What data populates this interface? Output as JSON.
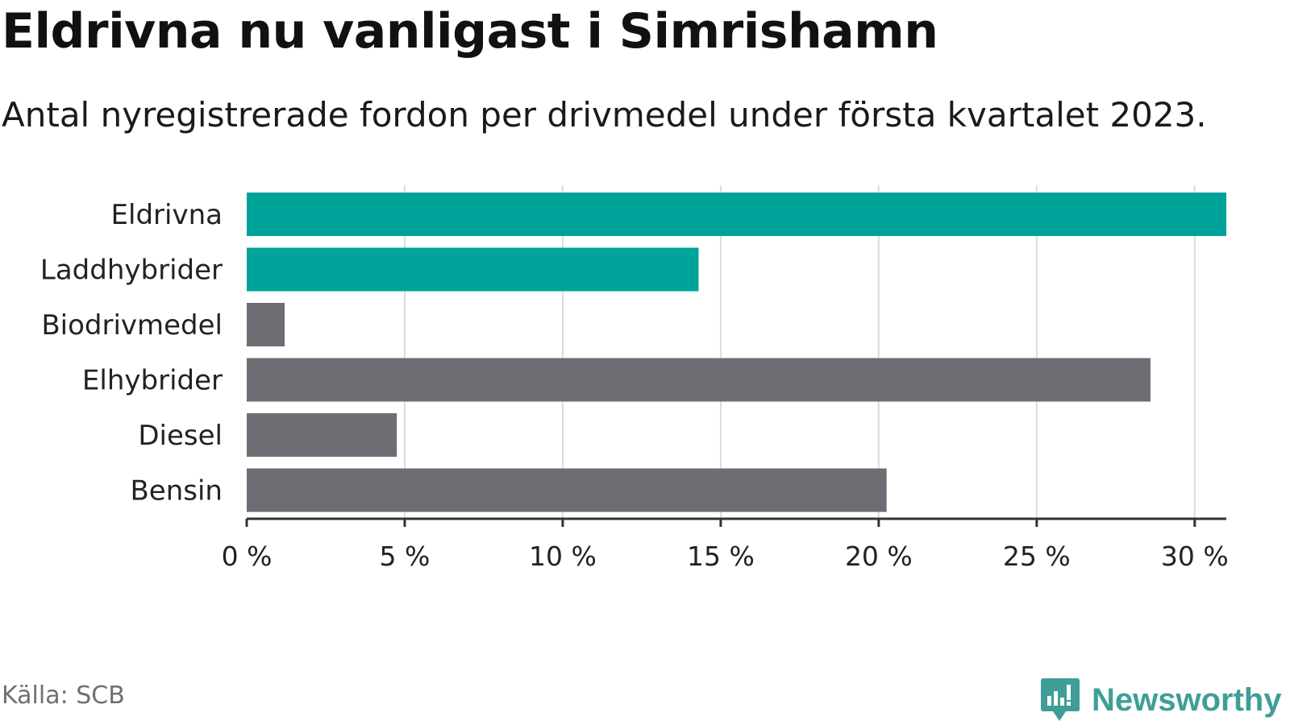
{
  "header": {
    "title": "Eldrivna nu vanligast i Simrishamn",
    "subtitle": "Antal nyregistrerade fordon per drivmedel under första kvartalet 2023."
  },
  "footer": {
    "source": "Källa: SCB",
    "brand": "Newsworthy",
    "brand_icon": "newsworthy-logo-icon"
  },
  "colors": {
    "highlight": "#00a39a",
    "other": "#6e6d73",
    "grid": "#dddddd",
    "axis": "#333333",
    "brand": "#3f9e98"
  },
  "chart_data": {
    "type": "bar",
    "orientation": "horizontal",
    "categories": [
      "Eldrivna",
      "Laddhybrider",
      "Biodrivmedel",
      "Elhybrider",
      "Diesel",
      "Bensin"
    ],
    "values": [
      31.0,
      14.3,
      1.2,
      28.6,
      4.75,
      20.25
    ],
    "highlighted": [
      true,
      true,
      false,
      false,
      false,
      false
    ],
    "xlim": [
      0,
      31
    ],
    "xticks": [
      0,
      5,
      10,
      15,
      20,
      25,
      30
    ],
    "xtick_labels": [
      "0 %",
      "5 %",
      "10 %",
      "15 %",
      "20 %",
      "25 %",
      "30 %"
    ],
    "grid": true,
    "legend": "none"
  }
}
